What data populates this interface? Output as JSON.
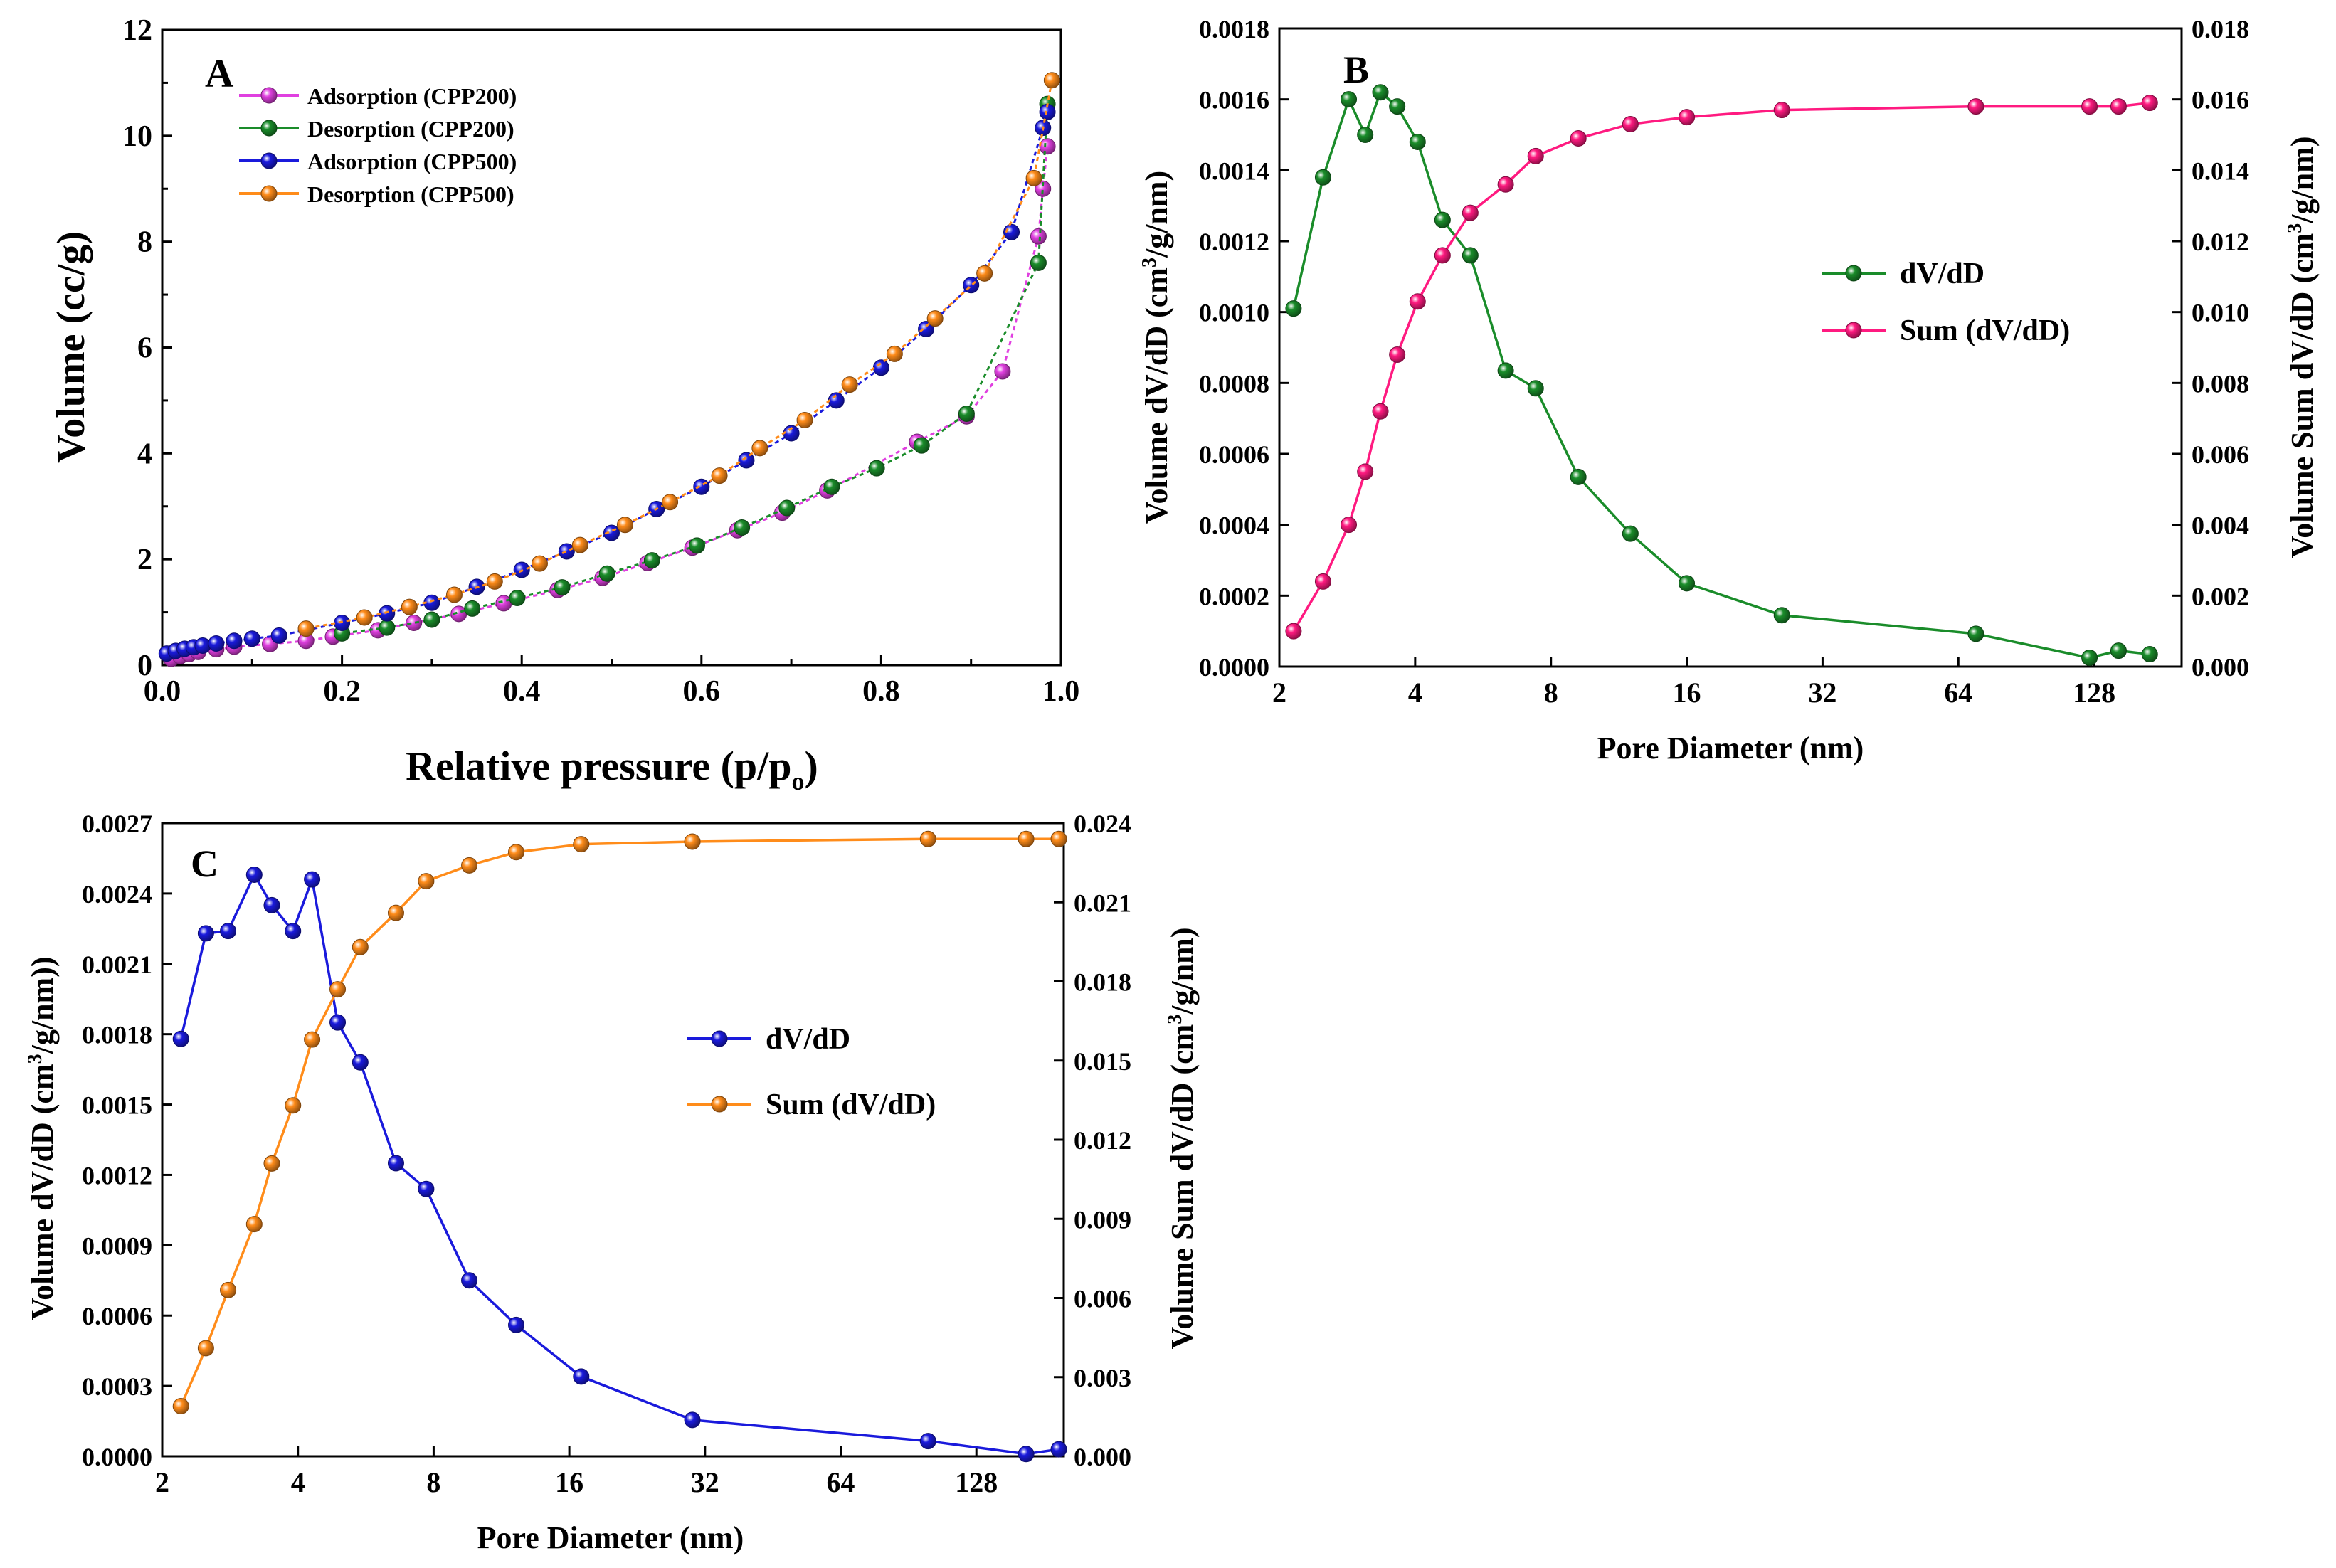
{
  "colors": {
    "cpp200_ads": "#e040e0",
    "cpp200_des": "#1a8c2a",
    "cpp500_ads": "#1a1adc",
    "cpp500_des": "#ff8c1a",
    "b_dvdd": "#1a8c2a",
    "b_sum": "#ff1a80",
    "c_dvdd": "#1a1adc",
    "c_sum": "#ff8c1a"
  },
  "chart_data": [
    {
      "id": "A",
      "panel_label": "A",
      "type": "line",
      "xlabel": "Relative pressure (p/p",
      "xlabel_sub": "o",
      "xlabel_end": ")",
      "ylabel": "Volume (cc/g)",
      "xlim": [
        0.0,
        1.0
      ],
      "ylim": [
        0,
        12
      ],
      "xticks": [
        "0.0",
        "0.2",
        "0.4",
        "0.6",
        "0.8",
        "1.0"
      ],
      "yticks": [
        "0",
        "2",
        "4",
        "6",
        "8",
        "10",
        "12"
      ],
      "legend": [
        "Adsorption (CPP200)",
        "Desorption (CPP200)",
        "Adsorption (CPP500)",
        "Desorption (CPP500)"
      ],
      "series": [
        {
          "name": "Adsorption (CPP200)",
          "color_key": "cpp200_ads",
          "x": [
            0.01,
            0.02,
            0.03,
            0.04,
            0.06,
            0.08,
            0.12,
            0.16,
            0.19,
            0.24,
            0.28,
            0.33,
            0.38,
            0.44,
            0.49,
            0.54,
            0.59,
            0.64,
            0.69,
            0.74,
            0.84,
            0.895,
            0.935,
            0.975,
            0.98,
            0.985
          ],
          "y": [
            0.12,
            0.17,
            0.21,
            0.25,
            0.3,
            0.35,
            0.4,
            0.46,
            0.54,
            0.66,
            0.8,
            0.97,
            1.17,
            1.42,
            1.65,
            1.93,
            2.22,
            2.55,
            2.88,
            3.3,
            4.22,
            4.7,
            5.55,
            8.1,
            9.0,
            9.8
          ]
        },
        {
          "name": "Desorption (CPP200)",
          "color_key": "cpp200_des",
          "x": [
            0.985,
            0.975,
            0.895,
            0.845,
            0.795,
            0.745,
            0.695,
            0.645,
            0.595,
            0.545,
            0.495,
            0.445,
            0.395,
            0.345,
            0.3,
            0.25,
            0.2
          ],
          "y": [
            10.6,
            7.6,
            4.75,
            4.15,
            3.72,
            3.37,
            2.97,
            2.6,
            2.26,
            1.98,
            1.73,
            1.47,
            1.27,
            1.07,
            0.86,
            0.71,
            0.6
          ]
        },
        {
          "name": "Adsorption (CPP500)",
          "color_key": "cpp500_ads",
          "x": [
            0.005,
            0.015,
            0.025,
            0.035,
            0.045,
            0.06,
            0.08,
            0.1,
            0.13,
            0.2,
            0.25,
            0.3,
            0.35,
            0.4,
            0.45,
            0.5,
            0.55,
            0.6,
            0.65,
            0.7,
            0.75,
            0.8,
            0.85,
            0.9,
            0.945,
            0.98,
            0.985
          ],
          "y": [
            0.22,
            0.27,
            0.31,
            0.34,
            0.37,
            0.41,
            0.46,
            0.5,
            0.56,
            0.8,
            0.98,
            1.18,
            1.48,
            1.8,
            2.15,
            2.5,
            2.95,
            3.37,
            3.87,
            4.38,
            5.0,
            5.62,
            6.35,
            7.18,
            8.18,
            10.15,
            10.45
          ]
        },
        {
          "name": "Desorption (CPP500)",
          "color_key": "cpp500_des",
          "x": [
            0.99,
            0.97,
            0.915,
            0.86,
            0.815,
            0.765,
            0.715,
            0.665,
            0.62,
            0.565,
            0.515,
            0.465,
            0.42,
            0.37,
            0.325,
            0.275,
            0.225,
            0.16
          ],
          "y": [
            11.05,
            9.2,
            7.4,
            6.55,
            5.88,
            5.3,
            4.63,
            4.1,
            3.58,
            3.08,
            2.65,
            2.27,
            1.92,
            1.58,
            1.33,
            1.1,
            0.9,
            0.69
          ]
        }
      ]
    },
    {
      "id": "B",
      "panel_label": "B",
      "type": "line",
      "xlabel": "Pore Diameter (nm)",
      "ylabel_left_pre": "Volume dV/dD  (cm",
      "ylabel_left_post": "/g/nm)",
      "ylabel_right_pre": "Volume Sum dV/dD (cm",
      "ylabel_right_post": "/g/nm)",
      "ylabel_sup": "3",
      "xscale": "log2",
      "xlim": [
        2,
        200
      ],
      "xticks": [
        "2",
        "4",
        "8",
        "16",
        "32",
        "64",
        "128"
      ],
      "xtick_values": [
        2,
        4,
        8,
        16,
        32,
        64,
        128
      ],
      "ylim_left": [
        0,
        0.0018
      ],
      "ylim_right": [
        0,
        0.018
      ],
      "yticks_left": [
        "0.0000",
        "0.0002",
        "0.0004",
        "0.0006",
        "0.0008",
        "0.0010",
        "0.0012",
        "0.0014",
        "0.0016",
        "0.0018"
      ],
      "yticks_right": [
        "0.000",
        "0.002",
        "0.004",
        "0.006",
        "0.008",
        "0.010",
        "0.012",
        "0.014",
        "0.016",
        "0.018"
      ],
      "legend": [
        "dV/dD",
        "Sum (dV/dD)"
      ],
      "series": [
        {
          "name": "dV/dD",
          "axis": "left",
          "color_key": "b_dvdd",
          "x": [
            2.15,
            2.5,
            2.85,
            3.1,
            3.35,
            3.65,
            4.05,
            4.6,
            5.3,
            6.35,
            7.4,
            9.2,
            12.0,
            16.0,
            26.0,
            70.0,
            125.0,
            145.0,
            170.0
          ],
          "y": [
            0.00101,
            0.00138,
            0.0016,
            0.0015,
            0.00162,
            0.00158,
            0.00148,
            0.00126,
            0.00116,
            0.000835,
            0.000785,
            0.000535,
            0.000375,
            0.000235,
            0.000145,
            9.25e-05,
            2.5e-05,
            4.5e-05,
            3.5e-05
          ]
        },
        {
          "name": "Sum (dV/dD)",
          "axis": "right",
          "color_key": "b_sum",
          "x": [
            2.15,
            2.5,
            2.85,
            3.1,
            3.35,
            3.65,
            4.05,
            4.6,
            5.3,
            6.35,
            7.4,
            9.2,
            12.0,
            16.0,
            26.0,
            70.0,
            125.0,
            145.0,
            170.0
          ],
          "y": [
            0.001,
            0.0024,
            0.004,
            0.0055,
            0.0072,
            0.0088,
            0.0103,
            0.0116,
            0.0128,
            0.0136,
            0.0144,
            0.0149,
            0.0153,
            0.0155,
            0.0157,
            0.0158,
            0.0158,
            0.0158,
            0.0159
          ]
        }
      ]
    },
    {
      "id": "C",
      "panel_label": "C",
      "type": "line",
      "xlabel": "Pore Diameter (nm)",
      "ylabel_left_pre": "Volume dV/dD  (cm",
      "ylabel_left_post": "/g/nm))",
      "ylabel_right_pre": "Volume Sum dV/dD  (cm",
      "ylabel_right_post": "/g/nm)",
      "ylabel_sup": "3",
      "xscale": "log2",
      "xlim": [
        2,
        200
      ],
      "xticks": [
        "2",
        "4",
        "8",
        "16",
        "32",
        "64",
        "128"
      ],
      "xtick_values": [
        2,
        4,
        8,
        16,
        32,
        64,
        128
      ],
      "ylim_left": [
        0,
        0.0027
      ],
      "ylim_right": [
        0,
        0.024
      ],
      "yticks_left": [
        "0.0000",
        "0.0003",
        "0.0006",
        "0.0009",
        "0.0012",
        "0.0015",
        "0.0018",
        "0.0021",
        "0.0024",
        "0.0027"
      ],
      "yticks_right": [
        "0.000",
        "0.003",
        "0.006",
        "0.009",
        "0.012",
        "0.015",
        "0.018",
        "0.021",
        "0.024"
      ],
      "legend": [
        "dV/dD",
        "Sum (dV/dD)"
      ],
      "series": [
        {
          "name": "dV/dD",
          "axis": "left",
          "color_key": "c_dvdd",
          "x": [
            2.2,
            2.5,
            2.8,
            3.2,
            3.5,
            3.9,
            4.3,
            4.9,
            5.5,
            6.6,
            7.7,
            9.6,
            12.2,
            17.0,
            30.0,
            100.0,
            165.0,
            195.0
          ],
          "y": [
            0.00178,
            0.00223,
            0.00224,
            0.00248,
            0.00235,
            0.00224,
            0.00246,
            0.00185,
            0.00168,
            0.00125,
            0.00114,
            0.00075,
            0.00056,
            0.00034,
            0.000155,
            6.5e-05,
            1e-05,
            3e-05
          ]
        },
        {
          "name": "Sum (dV/dD)",
          "axis": "right",
          "color_key": "c_sum",
          "x": [
            2.2,
            2.5,
            2.8,
            3.2,
            3.5,
            3.9,
            4.3,
            4.9,
            5.5,
            6.6,
            7.7,
            9.6,
            12.2,
            17.0,
            30.0,
            100.0,
            165.0,
            195.0
          ],
          "y": [
            0.0019,
            0.0041,
            0.0063,
            0.0088,
            0.0111,
            0.0133,
            0.0158,
            0.0177,
            0.0193,
            0.0206,
            0.0218,
            0.0224,
            0.0229,
            0.0232,
            0.0233,
            0.0234,
            0.0234,
            0.0234
          ]
        }
      ]
    }
  ]
}
